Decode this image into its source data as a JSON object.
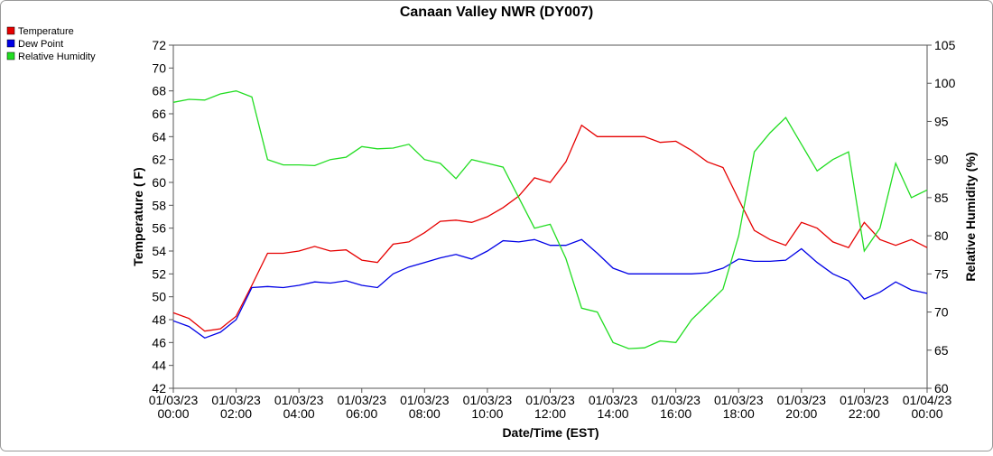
{
  "chart_data": {
    "type": "line",
    "title": "Canaan Valley NWR (DY007)",
    "xlabel": "Date/Time (EST)",
    "ylabel": "Temperature ( F)",
    "y2label": "Relative Humidity (%)",
    "legend": "top-left",
    "grid": false,
    "x": [
      "2023-01-03T00:00",
      "2023-01-03T00:30",
      "2023-01-03T01:00",
      "2023-01-03T01:30",
      "2023-01-03T02:00",
      "2023-01-03T02:30",
      "2023-01-03T03:00",
      "2023-01-03T03:30",
      "2023-01-03T04:00",
      "2023-01-03T04:30",
      "2023-01-03T05:00",
      "2023-01-03T05:30",
      "2023-01-03T06:00",
      "2023-01-03T06:30",
      "2023-01-03T07:00",
      "2023-01-03T07:30",
      "2023-01-03T08:00",
      "2023-01-03T08:30",
      "2023-01-03T09:00",
      "2023-01-03T09:30",
      "2023-01-03T10:00",
      "2023-01-03T10:30",
      "2023-01-03T11:00",
      "2023-01-03T11:30",
      "2023-01-03T12:00",
      "2023-01-03T12:30",
      "2023-01-03T13:00",
      "2023-01-03T13:30",
      "2023-01-03T14:00",
      "2023-01-03T14:30",
      "2023-01-03T15:00",
      "2023-01-03T15:30",
      "2023-01-03T16:00",
      "2023-01-03T16:30",
      "2023-01-03T17:00",
      "2023-01-03T17:30",
      "2023-01-03T18:00",
      "2023-01-03T18:30",
      "2023-01-03T19:00",
      "2023-01-03T19:30",
      "2023-01-03T20:00",
      "2023-01-03T20:30",
      "2023-01-03T21:00",
      "2023-01-03T21:30",
      "2023-01-03T22:00",
      "2023-01-03T22:30",
      "2023-01-03T23:00",
      "2023-01-03T23:30",
      "2023-01-04T00:00"
    ],
    "xlim": [
      "2023-01-03T00:00",
      "2023-01-04T00:00"
    ],
    "xticks": [
      {
        "value": "2023-01-03T00:00",
        "label": "01/03/23 00:00"
      },
      {
        "value": "2023-01-03T02:00",
        "label": "01/03/23 02:00"
      },
      {
        "value": "2023-01-03T04:00",
        "label": "01/03/23 04:00"
      },
      {
        "value": "2023-01-03T06:00",
        "label": "01/03/23 06:00"
      },
      {
        "value": "2023-01-03T08:00",
        "label": "01/03/23 08:00"
      },
      {
        "value": "2023-01-03T10:00",
        "label": "01/03/23 10:00"
      },
      {
        "value": "2023-01-03T12:00",
        "label": "01/03/23 12:00"
      },
      {
        "value": "2023-01-03T14:00",
        "label": "01/03/23 14:00"
      },
      {
        "value": "2023-01-03T16:00",
        "label": "01/03/23 16:00"
      },
      {
        "value": "2023-01-03T18:00",
        "label": "01/03/23 18:00"
      },
      {
        "value": "2023-01-03T20:00",
        "label": "01/03/23 20:00"
      },
      {
        "value": "2023-01-03T22:00",
        "label": "01/03/23 22:00"
      },
      {
        "value": "2023-01-04T00:00",
        "label": "01/04/23 00:00"
      }
    ],
    "ylim": [
      42,
      72
    ],
    "yticks": [
      42,
      44,
      46,
      48,
      50,
      52,
      54,
      56,
      58,
      60,
      62,
      64,
      66,
      68,
      70,
      72
    ],
    "y2lim": [
      60,
      105
    ],
    "y2ticks": [
      60,
      65,
      70,
      75,
      80,
      85,
      90,
      95,
      100,
      105
    ],
    "series": [
      {
        "name": "Temperature",
        "color": "#e60000",
        "values": [
          48.6,
          48.1,
          47.0,
          47.2,
          48.3,
          51.0,
          53.8,
          53.8,
          54.0,
          54.4,
          54.0,
          54.1,
          53.2,
          53.0,
          54.6,
          54.8,
          55.6,
          56.6,
          56.7,
          56.5,
          57.0,
          57.8,
          58.8,
          60.4,
          60.0,
          61.8,
          65.0,
          64.0,
          64.0,
          64.0,
          64.0,
          63.5,
          63.6,
          62.8,
          61.8,
          61.3,
          58.5,
          55.8,
          55.0,
          54.5,
          56.5,
          56.0,
          54.8,
          54.3,
          56.5,
          55.0,
          54.5,
          55.0,
          54.3
        ]
      },
      {
        "name": "Dew Point",
        "color": "#0000e6",
        "values": [
          47.9,
          47.4,
          46.4,
          46.9,
          48.0,
          50.8,
          50.9,
          50.8,
          51.0,
          51.3,
          51.2,
          51.4,
          51.0,
          50.8,
          52.0,
          52.6,
          53.0,
          53.4,
          53.7,
          53.3,
          54.0,
          54.9,
          54.8,
          55.0,
          54.5,
          54.5,
          55.0,
          53.8,
          52.5,
          52.0,
          52.0,
          52.0,
          52.0,
          52.0,
          52.1,
          52.5,
          53.3,
          53.1,
          53.1,
          53.2,
          54.2,
          53.0,
          52.0,
          51.4,
          49.8,
          50.4,
          51.3,
          50.6,
          50.3
        ]
      },
      {
        "name": "Relative Humidity",
        "color": "#22dd22",
        "axis": "y2",
        "values": [
          97.5,
          97.9,
          97.8,
          98.6,
          99.0,
          98.2,
          90.0,
          89.3,
          89.3,
          89.2,
          90.0,
          90.3,
          91.7,
          91.4,
          91.5,
          92.0,
          90.0,
          89.5,
          87.5,
          90.0,
          89.5,
          89.0,
          85.0,
          81.0,
          81.5,
          77.0,
          70.5,
          70.0,
          66.0,
          65.2,
          65.3,
          66.2,
          66.0,
          69.0,
          71.0,
          73.0,
          80.0,
          91.0,
          93.5,
          95.5,
          92.0,
          88.5,
          90.0,
          91.0,
          78.0,
          81.0,
          89.5,
          85.0,
          86.0
        ]
      }
    ]
  }
}
